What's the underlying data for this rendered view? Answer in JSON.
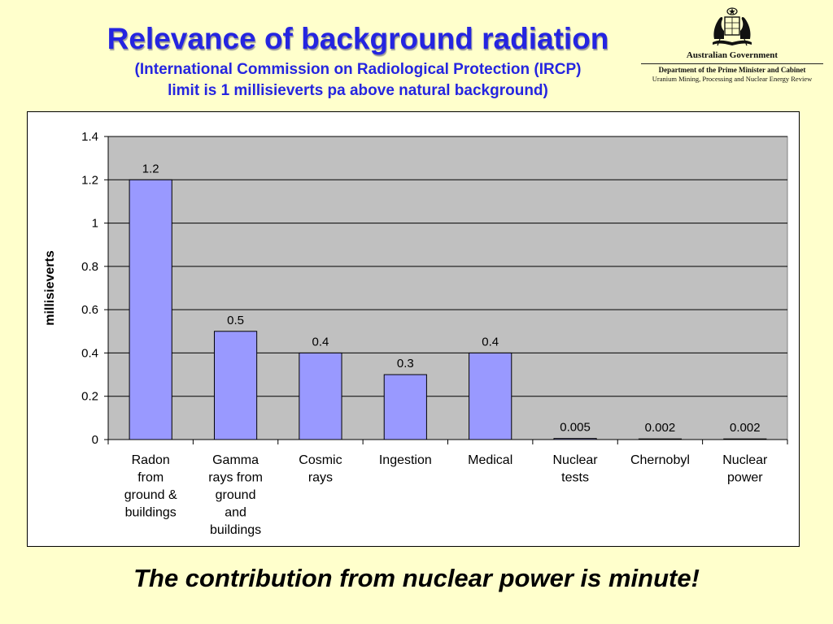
{
  "slide": {
    "title": "Relevance of background radiation",
    "subtitle_line1": "(International Commission on Radiological Protection (IRCP)",
    "subtitle_line2": "limit is 1 millisieverts pa above natural background)",
    "caption": "The contribution from nuclear power is minute!"
  },
  "logo": {
    "government": "Australian Government",
    "department": "Department of the Prime Minister and Cabinet",
    "review": "Uranium Mining, Processing and Nuclear Energy Review",
    "icon": "coat-of-arms-icon"
  },
  "colors": {
    "background": "#FFFFCC",
    "title": "#2525E0",
    "bar_fill": "#9999FF",
    "plot_background": "#C0C0C0"
  },
  "chart_data": {
    "type": "bar",
    "title": "",
    "xlabel": "",
    "ylabel": "millisieverts",
    "ylim": [
      0,
      1.4
    ],
    "yticks": [
      0,
      0.2,
      0.4,
      0.6,
      0.8,
      1,
      1.2,
      1.4
    ],
    "grid": true,
    "categories": [
      [
        "Radon",
        "from",
        "ground &",
        "buildings"
      ],
      [
        "Gamma",
        "rays from",
        "ground",
        "and",
        "buildings"
      ],
      [
        "Cosmic",
        "rays"
      ],
      [
        "Ingestion"
      ],
      [
        "Medical"
      ],
      [
        "Nuclear",
        "tests"
      ],
      [
        "Chernobyl"
      ],
      [
        "Nuclear",
        "power"
      ]
    ],
    "values": [
      1.2,
      0.5,
      0.4,
      0.3,
      0.4,
      0.005,
      0.002,
      0.002
    ],
    "data_labels": [
      "1.2",
      "0.5",
      "0.4",
      "0.3",
      "0.4",
      "0.005",
      "0.002",
      "0.002"
    ]
  }
}
